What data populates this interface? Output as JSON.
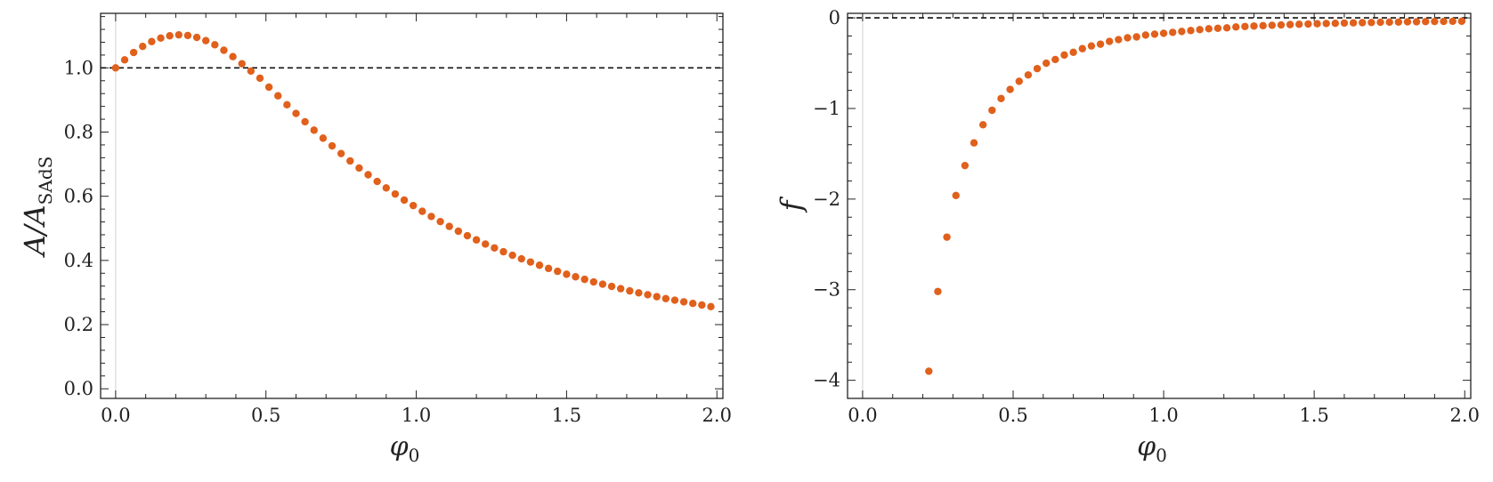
{
  "chart_data": [
    {
      "type": "scatter",
      "xlabel": "φ",
      "xlabel_sub": "0",
      "ylabel": "A/A",
      "ylabel_sub": "SAdS",
      "xlim": [
        -0.05,
        2.02
      ],
      "ylim": [
        -0.03,
        1.17
      ],
      "xticks": [
        0.0,
        0.5,
        1.0,
        1.5,
        2.0
      ],
      "xtick_labels": [
        "0.0",
        "0.5",
        "1.0",
        "1.5",
        "2.0"
      ],
      "yticks": [
        0.0,
        0.2,
        0.4,
        0.6,
        0.8,
        1.0
      ],
      "ytick_labels": [
        "0.0",
        "0.2",
        "0.4",
        "0.6",
        "0.8",
        "1.0"
      ],
      "reference_line": {
        "y": 1.0,
        "style": "dashed"
      },
      "marker_color": "#e0601c",
      "x": [
        0.0,
        0.03,
        0.06,
        0.09,
        0.12,
        0.15,
        0.18,
        0.21,
        0.24,
        0.27,
        0.3,
        0.33,
        0.36,
        0.39,
        0.42,
        0.45,
        0.48,
        0.51,
        0.54,
        0.57,
        0.6,
        0.63,
        0.66,
        0.69,
        0.72,
        0.75,
        0.78,
        0.81,
        0.84,
        0.87,
        0.9,
        0.93,
        0.96,
        0.99,
        1.02,
        1.05,
        1.08,
        1.11,
        1.14,
        1.17,
        1.2,
        1.23,
        1.26,
        1.29,
        1.32,
        1.35,
        1.38,
        1.41,
        1.44,
        1.47,
        1.5,
        1.53,
        1.56,
        1.59,
        1.62,
        1.65,
        1.68,
        1.71,
        1.74,
        1.77,
        1.8,
        1.83,
        1.86,
        1.89,
        1.92,
        1.95,
        1.98
      ],
      "y": [
        1.0,
        1.025,
        1.048,
        1.067,
        1.082,
        1.093,
        1.1,
        1.103,
        1.101,
        1.095,
        1.085,
        1.072,
        1.055,
        1.035,
        1.013,
        0.99,
        0.968,
        0.94,
        0.913,
        0.885,
        0.858,
        0.832,
        0.806,
        0.781,
        0.757,
        0.733,
        0.71,
        0.688,
        0.667,
        0.646,
        0.626,
        0.607,
        0.588,
        0.571,
        0.553,
        0.537,
        0.521,
        0.506,
        0.491,
        0.477,
        0.464,
        0.451,
        0.439,
        0.427,
        0.416,
        0.405,
        0.395,
        0.385,
        0.375,
        0.366,
        0.357,
        0.349,
        0.341,
        0.333,
        0.326,
        0.319,
        0.312,
        0.305,
        0.299,
        0.293,
        0.287,
        0.281,
        0.276,
        0.271,
        0.266,
        0.261,
        0.256
      ]
    },
    {
      "type": "scatter",
      "xlabel": "φ",
      "xlabel_sub": "0",
      "ylabel": "f",
      "xlim": [
        -0.05,
        2.02
      ],
      "ylim": [
        -4.2,
        0.05
      ],
      "xticks": [
        0.0,
        0.5,
        1.0,
        1.5,
        2.0
      ],
      "xtick_labels": [
        "0.0",
        "0.5",
        "1.0",
        "1.5",
        "2.0"
      ],
      "yticks": [
        0,
        -1,
        -2,
        -3,
        -4
      ],
      "ytick_labels": [
        "0",
        "−1",
        "−2",
        "−3",
        "−4"
      ],
      "reference_line": {
        "y": 0,
        "style": "dashed"
      },
      "marker_color": "#e0601c",
      "x": [
        0.22,
        0.25,
        0.28,
        0.31,
        0.34,
        0.37,
        0.4,
        0.43,
        0.46,
        0.49,
        0.52,
        0.55,
        0.58,
        0.61,
        0.64,
        0.67,
        0.7,
        0.73,
        0.76,
        0.79,
        0.82,
        0.85,
        0.88,
        0.91,
        0.94,
        0.97,
        1.0,
        1.03,
        1.06,
        1.09,
        1.12,
        1.15,
        1.18,
        1.21,
        1.24,
        1.27,
        1.3,
        1.33,
        1.36,
        1.39,
        1.42,
        1.45,
        1.48,
        1.51,
        1.54,
        1.57,
        1.6,
        1.63,
        1.66,
        1.69,
        1.72,
        1.75,
        1.78,
        1.81,
        1.84,
        1.87,
        1.9,
        1.93,
        1.96,
        1.99
      ],
      "y": [
        -3.9,
        -3.02,
        -2.42,
        -1.96,
        -1.63,
        -1.38,
        -1.18,
        -1.02,
        -0.89,
        -0.79,
        -0.7,
        -0.63,
        -0.56,
        -0.5,
        -0.46,
        -0.41,
        -0.38,
        -0.34,
        -0.31,
        -0.29,
        -0.26,
        -0.24,
        -0.22,
        -0.21,
        -0.19,
        -0.18,
        -0.17,
        -0.16,
        -0.15,
        -0.14,
        -0.13,
        -0.12,
        -0.115,
        -0.11,
        -0.1,
        -0.095,
        -0.09,
        -0.086,
        -0.082,
        -0.078,
        -0.074,
        -0.071,
        -0.068,
        -0.065,
        -0.062,
        -0.06,
        -0.057,
        -0.055,
        -0.053,
        -0.051,
        -0.049,
        -0.047,
        -0.046,
        -0.044,
        -0.043,
        -0.041,
        -0.04,
        -0.039,
        -0.038,
        -0.037
      ]
    }
  ]
}
